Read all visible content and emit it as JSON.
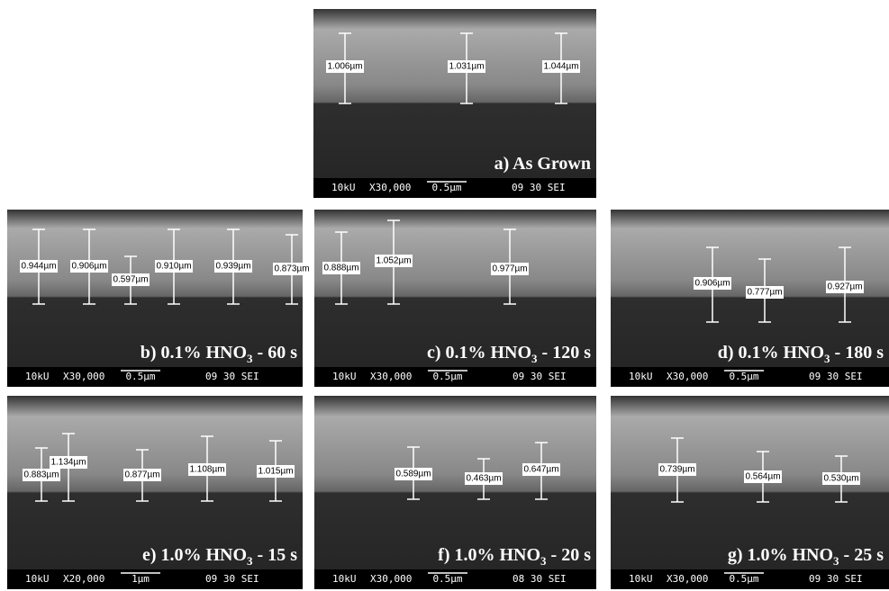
{
  "panels": [
    {
      "label": {
        "prefix": "a) As Grown"
      },
      "measurements": [
        "1.006µm",
        "1.031µm",
        "1.044µm"
      ],
      "footer": {
        "kv": "10kU",
        "mag": "X30,000",
        "scale": "0.5µm",
        "code": "09 30 SEI"
      }
    },
    {
      "label": {
        "prefix": "b) 0.1% HNO",
        "sub": "3",
        "suffix": " - 60 s"
      },
      "measurements": [
        "0.944µm",
        "0.906µm",
        "0.597µm",
        "0.910µm",
        "0.939µm",
        "0.873µm"
      ],
      "footer": {
        "kv": "10kU",
        "mag": "X30,000",
        "scale": "0.5µm",
        "code": "09 30 SEI"
      }
    },
    {
      "label": {
        "prefix": "c) 0.1% HNO",
        "sub": "3",
        "suffix": " - 120 s"
      },
      "measurements": [
        "0.888µm",
        "1.052µm",
        "0.977µm"
      ],
      "footer": {
        "kv": "10kU",
        "mag": "X30,000",
        "scale": "0.5µm",
        "code": "09 30 SEI"
      }
    },
    {
      "label": {
        "prefix": "d) 0.1% HNO",
        "sub": "3",
        "suffix": " - 180 s"
      },
      "measurements": [
        "0.906µm",
        "0.777µm",
        "0.927µm"
      ],
      "footer": {
        "kv": "10kU",
        "mag": "X30,000",
        "scale": "0.5µm",
        "code": "09 30 SEI"
      }
    },
    {
      "label": {
        "prefix": "e) 1.0% HNO",
        "sub": "3",
        "suffix": " - 15 s"
      },
      "measurements": [
        "0.883µm",
        "1.134µm",
        "0.877µm",
        "1.108µm",
        "1.015µm"
      ],
      "footer": {
        "kv": "10kU",
        "mag": "X20,000",
        "scale": "1µm",
        "code": "09 30 SEI"
      }
    },
    {
      "label": {
        "prefix": "f) 1.0% HNO",
        "sub": "3",
        "suffix": " - 20 s"
      },
      "measurements": [
        "0.589µm",
        "0.463µm",
        "0.647µm"
      ],
      "footer": {
        "kv": "10kU",
        "mag": "X30,000",
        "scale": "0.5µm",
        "code": "08 30 SEI"
      }
    },
    {
      "label": {
        "prefix": "g) 1.0% HNO",
        "sub": "3",
        "suffix": " - 25 s"
      },
      "measurements": [
        "0.739µm",
        "0.564µm",
        "0.530µm"
      ],
      "footer": {
        "kv": "10kU",
        "mag": "X30,000",
        "scale": "0.5µm",
        "code": "09 30 SEI"
      }
    }
  ]
}
